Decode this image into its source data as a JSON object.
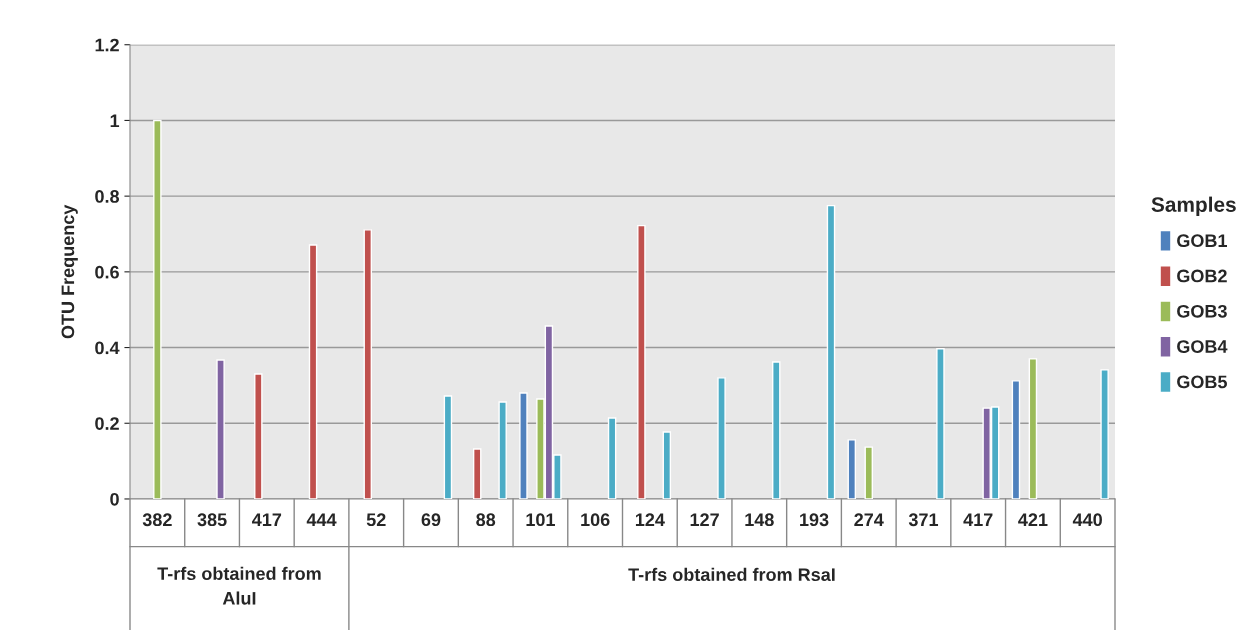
{
  "chart_data": {
    "type": "bar",
    "ylabel": "OTU Frequency",
    "legend_title": "Samples",
    "categories": [
      "382",
      "385",
      "417",
      "444",
      "52",
      "69",
      "88",
      "101",
      "106",
      "124",
      "127",
      "148",
      "193",
      "274",
      "371",
      "417",
      "421",
      "440"
    ],
    "series": [
      {
        "name": "GOB1",
        "color": "#4f81bd",
        "values": [
          null,
          null,
          null,
          null,
          null,
          null,
          null,
          0.28,
          null,
          null,
          null,
          null,
          null,
          0.156,
          null,
          null,
          0.312,
          null
        ]
      },
      {
        "name": "GOB2",
        "color": "#c0504d",
        "values": [
          null,
          null,
          0.33,
          0.671,
          0.711,
          null,
          0.132,
          null,
          null,
          0.722,
          null,
          null,
          null,
          null,
          null,
          null,
          null,
          null
        ]
      },
      {
        "name": "GOB3",
        "color": "#9bbb59",
        "values": [
          1.0,
          null,
          null,
          null,
          null,
          null,
          null,
          0.264,
          null,
          null,
          null,
          null,
          null,
          0.137,
          null,
          null,
          0.37,
          null
        ]
      },
      {
        "name": "GOB4",
        "color": "#8064a2",
        "values": [
          null,
          0.367,
          null,
          null,
          null,
          null,
          null,
          0.457,
          null,
          null,
          null,
          null,
          null,
          null,
          null,
          0.24,
          null,
          null
        ]
      },
      {
        "name": "GOB5",
        "color": "#4bacc6",
        "values": [
          null,
          null,
          null,
          null,
          null,
          0.272,
          0.256,
          0.116,
          0.214,
          0.177,
          0.32,
          0.362,
          0.775,
          null,
          0.397,
          0.243,
          null,
          0.341
        ]
      }
    ],
    "ylim": [
      0,
      1.2
    ],
    "yticks": [
      0,
      0.2,
      0.4,
      0.6,
      0.8,
      1,
      1.2
    ],
    "grid": "y",
    "legend": "right",
    "annotations": [
      "T-rfs obtained from AluI",
      "T-rfs obtained from RsaI"
    ]
  }
}
